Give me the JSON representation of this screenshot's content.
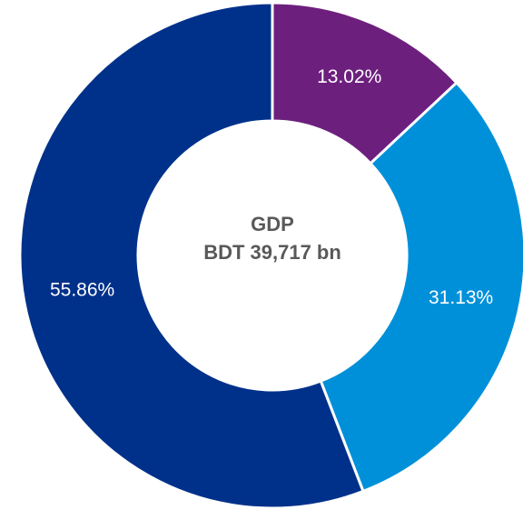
{
  "chart_data": {
    "type": "donut",
    "center_text": [
      "GDP",
      "BDT 39,717 bn"
    ],
    "values": [
      13.02,
      31.13,
      55.86
    ],
    "value_labels": [
      "13.02%",
      "31.13%",
      "55.86%"
    ],
    "colors": [
      "#6d1f7e",
      "#0090d9",
      "#00318a"
    ]
  }
}
